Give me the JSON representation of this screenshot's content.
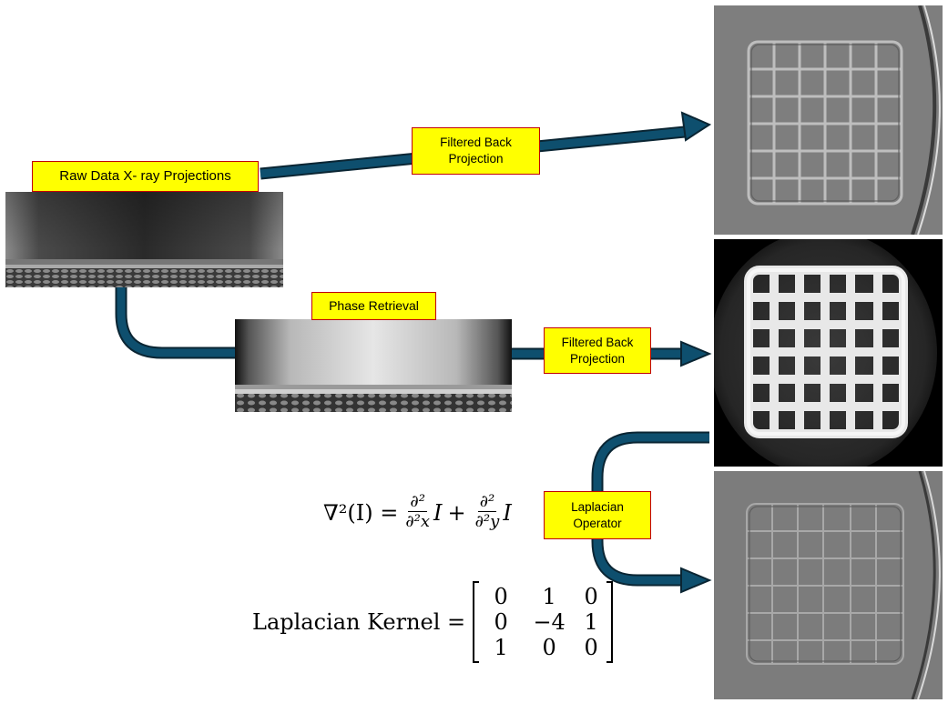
{
  "labels": {
    "raw_data": "Raw Data X- ray Projections",
    "phase_retrieval": "Phase Retrieval",
    "fbp_top": "Filtered Back Projection",
    "fbp_middle": "Filtered Back Projection",
    "laplacian": "Laplacian Operator"
  },
  "equation": {
    "lhs": "∇²(I) =",
    "term1_num": "∂²",
    "term1_den": "∂²x",
    "term1_var": "I",
    "plus": "+",
    "term2_num": "∂²",
    "term2_den": "∂²y",
    "term2_var": "I"
  },
  "kernel": {
    "label": "Laplacian Kernel =",
    "matrix": [
      [
        "0",
        "1",
        "0"
      ],
      [
        "0",
        "−4",
        "1"
      ],
      [
        "1",
        "0",
        "0"
      ]
    ]
  },
  "colors": {
    "arrow_fill": "#0e4f6e",
    "arrow_stroke": "#0a2533",
    "box_fill": "#ffff00",
    "box_border": "#c00000"
  }
}
